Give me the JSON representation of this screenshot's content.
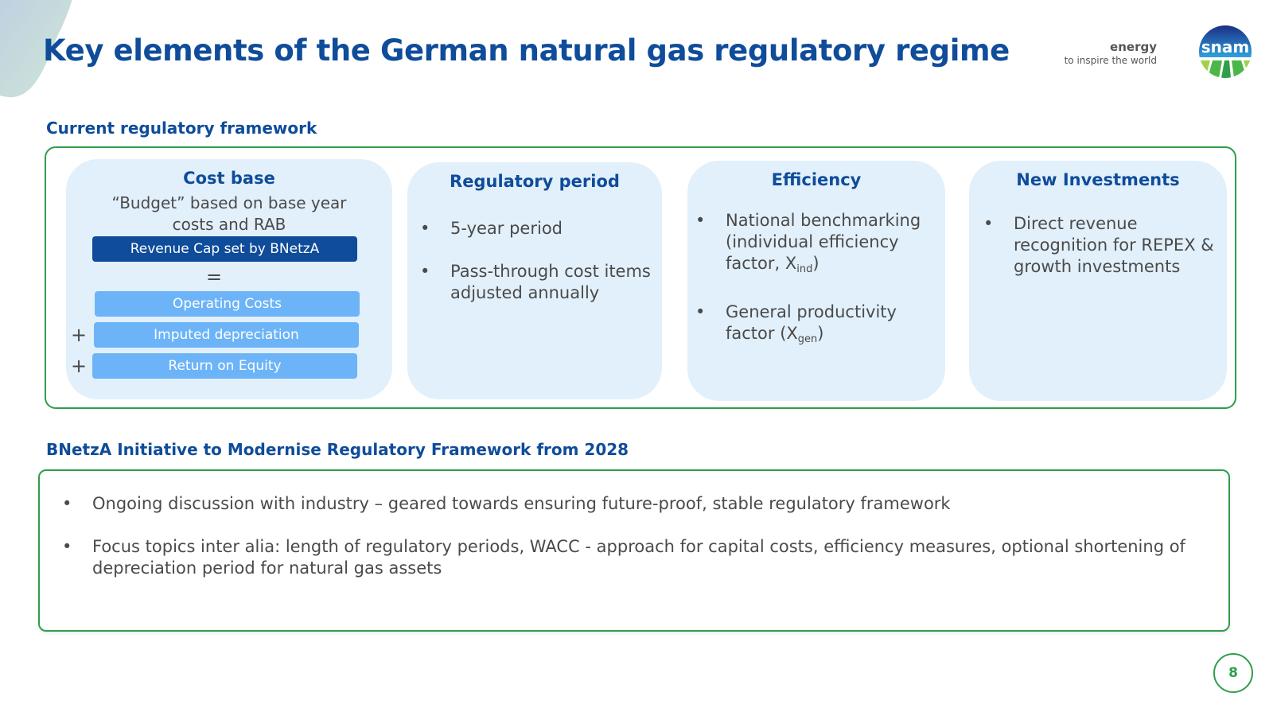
{
  "title": "Key elements of the German natural gas regulatory regime",
  "brand": {
    "line1": "energy",
    "line2": "to inspire the world",
    "logo_text": "snam"
  },
  "section1": {
    "label": "Current regulatory framework",
    "cost_base": {
      "title": "Cost base",
      "subtitle_line1": "“Budget” based on base year",
      "subtitle_line2": "costs and RAB",
      "revenue_cap": "Revenue Cap set by BNetzA",
      "equals": "=",
      "plus": "+",
      "items": [
        "Operating Costs",
        "Imputed depreciation",
        "Return on Equity"
      ]
    },
    "regulatory_period": {
      "title": "Regulatory period",
      "bullets": [
        "5-year period",
        "Pass-through cost items adjusted annually"
      ]
    },
    "efficiency": {
      "title": "Efficiency",
      "b1_text": "National benchmarking (individual efficiency factor, X",
      "b1_sub": "ind",
      "b1_close": ")",
      "b2_text": "General productivity factor (X",
      "b2_sub": "gen",
      "b2_close": ")"
    },
    "new_investments": {
      "title": "New Investments",
      "bullets": [
        "Direct revenue recognition for REPEX & growth investments"
      ]
    }
  },
  "section2": {
    "label": "BNetzA Initiative to Modernise Regulatory Framework from 2028",
    "bullets": [
      "Ongoing discussion with industry – geared towards ensuring future-proof, stable regulatory framework",
      "Focus topics inter alia: length of regulatory periods, WACC - approach for capital costs, efficiency measures, optional shortening of depreciation period for natural gas assets"
    ]
  },
  "bullet_symbol": "•",
  "page_number": "8",
  "colors": {
    "primary": "#0f4c9a",
    "accent_green": "#2f9e4a",
    "card_bg": "#e2f0fb",
    "light_bar": "#6cb4f7"
  }
}
